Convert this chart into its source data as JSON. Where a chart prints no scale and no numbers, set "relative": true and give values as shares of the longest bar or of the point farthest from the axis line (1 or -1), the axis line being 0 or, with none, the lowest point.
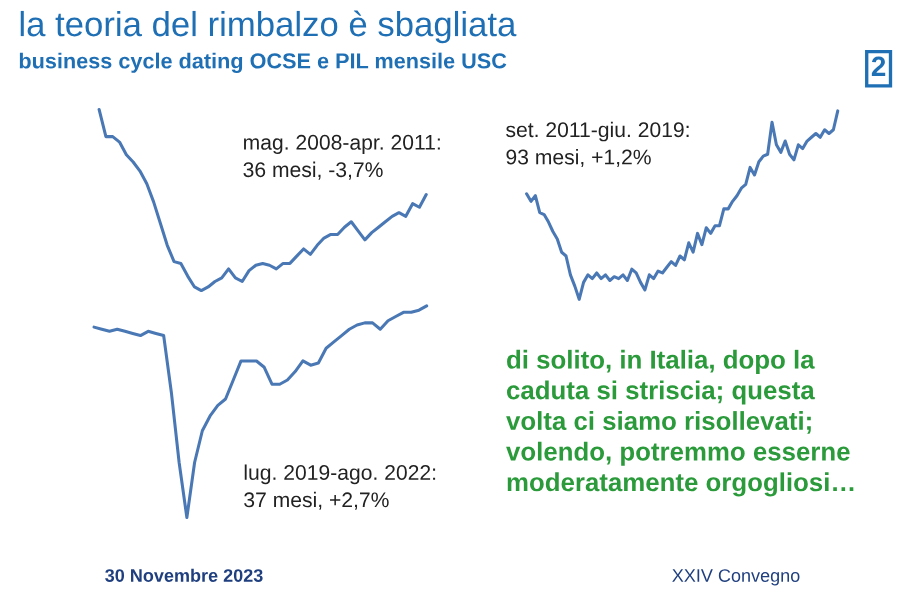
{
  "chart_data": [
    {
      "type": "line",
      "relative": true,
      "title": "la teoria del rimbalzo è sbagliata",
      "subtitle": "business cycle dating OCSE e PIL mensile USC",
      "color": "#4a78b5",
      "categories": [
        null,
        null,
        null,
        null,
        null,
        null,
        null,
        null,
        null,
        null,
        null,
        null,
        null,
        null,
        null,
        null,
        null,
        null,
        null,
        null,
        null,
        null,
        null,
        null,
        null,
        null,
        null,
        null,
        null,
        null,
        null,
        null,
        null,
        null,
        null,
        null,
        null,
        null,
        null,
        null,
        null,
        null,
        null,
        null,
        null,
        null,
        null,
        null,
        null
      ],
      "values": [
        1.0,
        0.85,
        0.85,
        0.82,
        0.75,
        0.71,
        0.66,
        0.59,
        0.49,
        0.37,
        0.25,
        0.16,
        0.15,
        0.08,
        0.02,
        0,
        0.02,
        0.05,
        0.07,
        0.12,
        0.07,
        0.05,
        0.11,
        0.14,
        0.15,
        0.14,
        0.12,
        0.15,
        0.15,
        0.19,
        0.23,
        0.2,
        0.25,
        0.29,
        0.31,
        0.31,
        0.35,
        0.38,
        0.33,
        0.28,
        0.32,
        0.35,
        0.38,
        0.41,
        0.43,
        0.41,
        0.48,
        0.46,
        0.53
      ],
      "annotations": [
        "mag. 2008-apr. 2011:\n36 mesi, -3,7%",
        "2",
        "30 Novembre 2023",
        "XXIV Convegno"
      ]
    },
    {
      "type": "line",
      "relative": true,
      "color": "#4a78b5",
      "categories": [
        null,
        null,
        null,
        null,
        null,
        null,
        null,
        null,
        null,
        null,
        null,
        null,
        null,
        null,
        null,
        null,
        null,
        null,
        null,
        null,
        null,
        null,
        null,
        null,
        null,
        null,
        null,
        null,
        null,
        null,
        null,
        null,
        null,
        null,
        null,
        null,
        null,
        null,
        null,
        null,
        null,
        null,
        null,
        null,
        null,
        null,
        null,
        null,
        null,
        null,
        null,
        null,
        null,
        null,
        null,
        null,
        null,
        null,
        null,
        null,
        null,
        null,
        null,
        null,
        null,
        null,
        null,
        null,
        null,
        null,
        null,
        null
      ],
      "values": [
        0.56,
        0.52,
        0.55,
        0.46,
        0.45,
        0.41,
        0.36,
        0.32,
        0.25,
        0.23,
        0.13,
        0.07,
        0,
        0.09,
        0.13,
        0.11,
        0.14,
        0.11,
        0.13,
        0.1,
        0.12,
        0.11,
        0.13,
        0.1,
        0.16,
        0.14,
        0.09,
        0.05,
        0.13,
        0.11,
        0.15,
        0.14,
        0.17,
        0.2,
        0.18,
        0.23,
        0.21,
        0.3,
        0.25,
        0.35,
        0.29,
        0.38,
        0.35,
        0.39,
        0.39,
        0.48,
        0.48,
        0.52,
        0.55,
        0.59,
        0.61,
        0.7,
        0.66,
        0.73,
        0.76,
        0.77,
        0.94,
        0.82,
        0.78,
        0.84,
        0.77,
        0.74,
        0.82,
        0.8,
        0.84,
        0.86,
        0.88,
        0.86,
        0.9,
        0.88,
        0.9,
        1.0
      ],
      "annotations": [
        "set. 2011-giu. 2019:\n93 mesi, +1,2%",
        "di solito, in Italia, dopo la\ncaduta si striscia; questa\nvolta ci siamo risollevati;\nvolendo, potremmo esserne\nmoderatamente orgogliosi…"
      ]
    },
    {
      "type": "line",
      "relative": true,
      "color": "#4a78b5",
      "categories": [
        null,
        null,
        null,
        null,
        null,
        null,
        null,
        null,
        null,
        null,
        null,
        null,
        null,
        null,
        null,
        null,
        null,
        null,
        null,
        null,
        null,
        null,
        null,
        null,
        null,
        null,
        null,
        null,
        null,
        null,
        null,
        null,
        null,
        null,
        null,
        null,
        null,
        null,
        null,
        null,
        null,
        null,
        null,
        null
      ],
      "values": [
        0.9,
        0.89,
        0.88,
        0.89,
        0.88,
        0.87,
        0.86,
        0.88,
        0.87,
        0.86,
        0.59,
        0.26,
        0,
        0.26,
        0.41,
        0.48,
        0.53,
        0.56,
        0.65,
        0.74,
        0.74,
        0.74,
        0.71,
        0.63,
        0.63,
        0.65,
        0.69,
        0.74,
        0.72,
        0.73,
        0.8,
        0.83,
        0.86,
        0.89,
        0.91,
        0.92,
        0.92,
        0.89,
        0.93,
        0.95,
        0.97,
        0.97,
        0.98,
        1.0
      ],
      "annotations": [
        "lug. 2019-ago. 2022:\n37 mesi, +2,7%"
      ]
    }
  ]
}
